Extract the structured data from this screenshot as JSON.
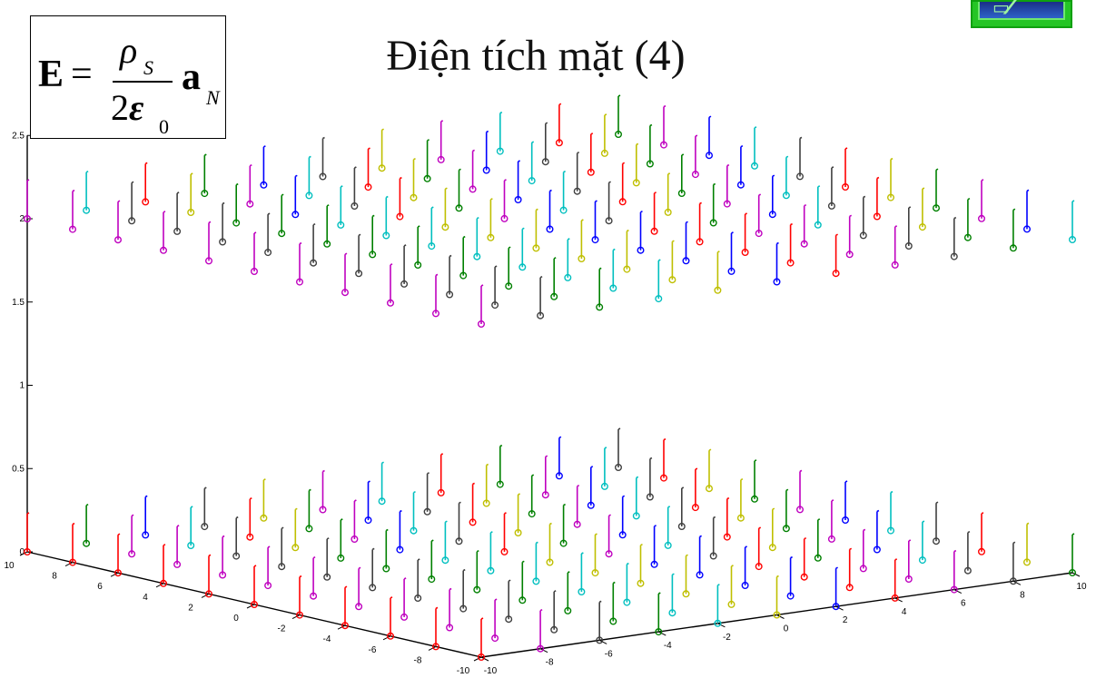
{
  "title": "Điện tích mặt (4)",
  "formula": {
    "lhs": "E",
    "equals": "=",
    "numerator": "ρ",
    "numerator_sub": "S",
    "denominator_coef": "2",
    "denominator_eps": "ε",
    "denominator_sub": "0",
    "vector": "a",
    "vector_sub": "N"
  },
  "nav_logo_icon": "navigation-logo-icon",
  "chart_data": {
    "type": "scatter",
    "subtype": "stem3-2-layer",
    "title": "",
    "xlabel": "",
    "ylabel": "",
    "zlabel": "",
    "xlim": [
      -10,
      10
    ],
    "ylim": [
      -10,
      10
    ],
    "zlim": [
      0,
      2.5
    ],
    "x_ticks": [
      "-10",
      "-8",
      "-6",
      "-4",
      "-2",
      "0",
      "2",
      "4",
      "6",
      "8",
      "10"
    ],
    "y_ticks": [
      "-10",
      "-8",
      "-6",
      "-4",
      "-2",
      "0",
      "2",
      "4",
      "6",
      "8",
      "10"
    ],
    "z_ticks": [
      "0",
      "0.5",
      "1",
      "1.5",
      "2",
      "2.5"
    ],
    "grid": false,
    "series": [
      {
        "z": 0,
        "x_range": [
          -10,
          10
        ],
        "y_range": [
          -10,
          10
        ],
        "step": 2
      },
      {
        "z": 2,
        "x_range": [
          -10,
          10
        ],
        "y_range": [
          -10,
          10
        ],
        "step": 2
      }
    ],
    "marker_colors": [
      "#0000ff",
      "#008000",
      "#ff0000",
      "#00bfbf",
      "#bf00bf",
      "#bfbf00",
      "#404040"
    ]
  }
}
